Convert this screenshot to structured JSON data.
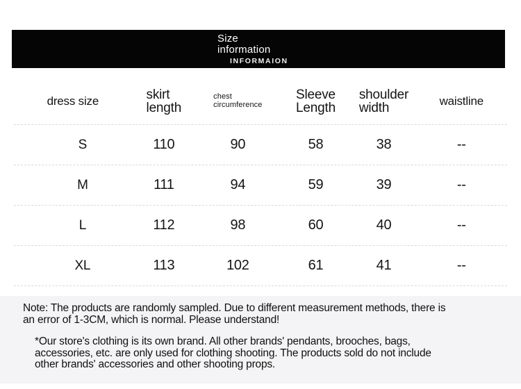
{
  "header": {
    "title_line1": "Size",
    "title_line2": "information",
    "subtitle": "INFORMAION"
  },
  "table": {
    "headers": [
      {
        "line1": "dress size",
        "line2": ""
      },
      {
        "line1": "skirt",
        "line2": "length"
      },
      {
        "line1": "chest",
        "line2": "circumference"
      },
      {
        "line1": "Sleeve",
        "line2": "Length"
      },
      {
        "line1": "shoulder",
        "line2": "width"
      },
      {
        "line1": "waistline",
        "line2": ""
      }
    ],
    "rows": [
      {
        "cells": [
          "S",
          "110",
          "90",
          "58",
          "38",
          "--"
        ]
      },
      {
        "cells": [
          "M",
          "111",
          "94",
          "59",
          "39",
          "--"
        ]
      },
      {
        "cells": [
          "L",
          "112",
          "98",
          "60",
          "40",
          "--"
        ]
      },
      {
        "cells": [
          "XL",
          "113",
          "102",
          "61",
          "41",
          "--"
        ]
      }
    ]
  },
  "notes": {
    "paragraph1": {
      "line1": "Note: The products are randomly sampled. Due to different measurement methods, there is",
      "line2": "an error of 1-3CM, which is normal. Please understand!"
    },
    "paragraph2": {
      "line1": "*Our store's clothing is its own brand. All other brands' pendants, brooches, bags,",
      "line2": "accessories, etc. are only used for clothing shooting. The products sold do not include",
      "line3": "other brands' accessories and other shooting props."
    }
  },
  "colors": {
    "banner_bg": "#050505",
    "banner_text": "#ffffff",
    "table_text": "#141414",
    "divider": "#d9d9d9",
    "note_bg": "#f4f3f5",
    "note_text": "#101010"
  }
}
